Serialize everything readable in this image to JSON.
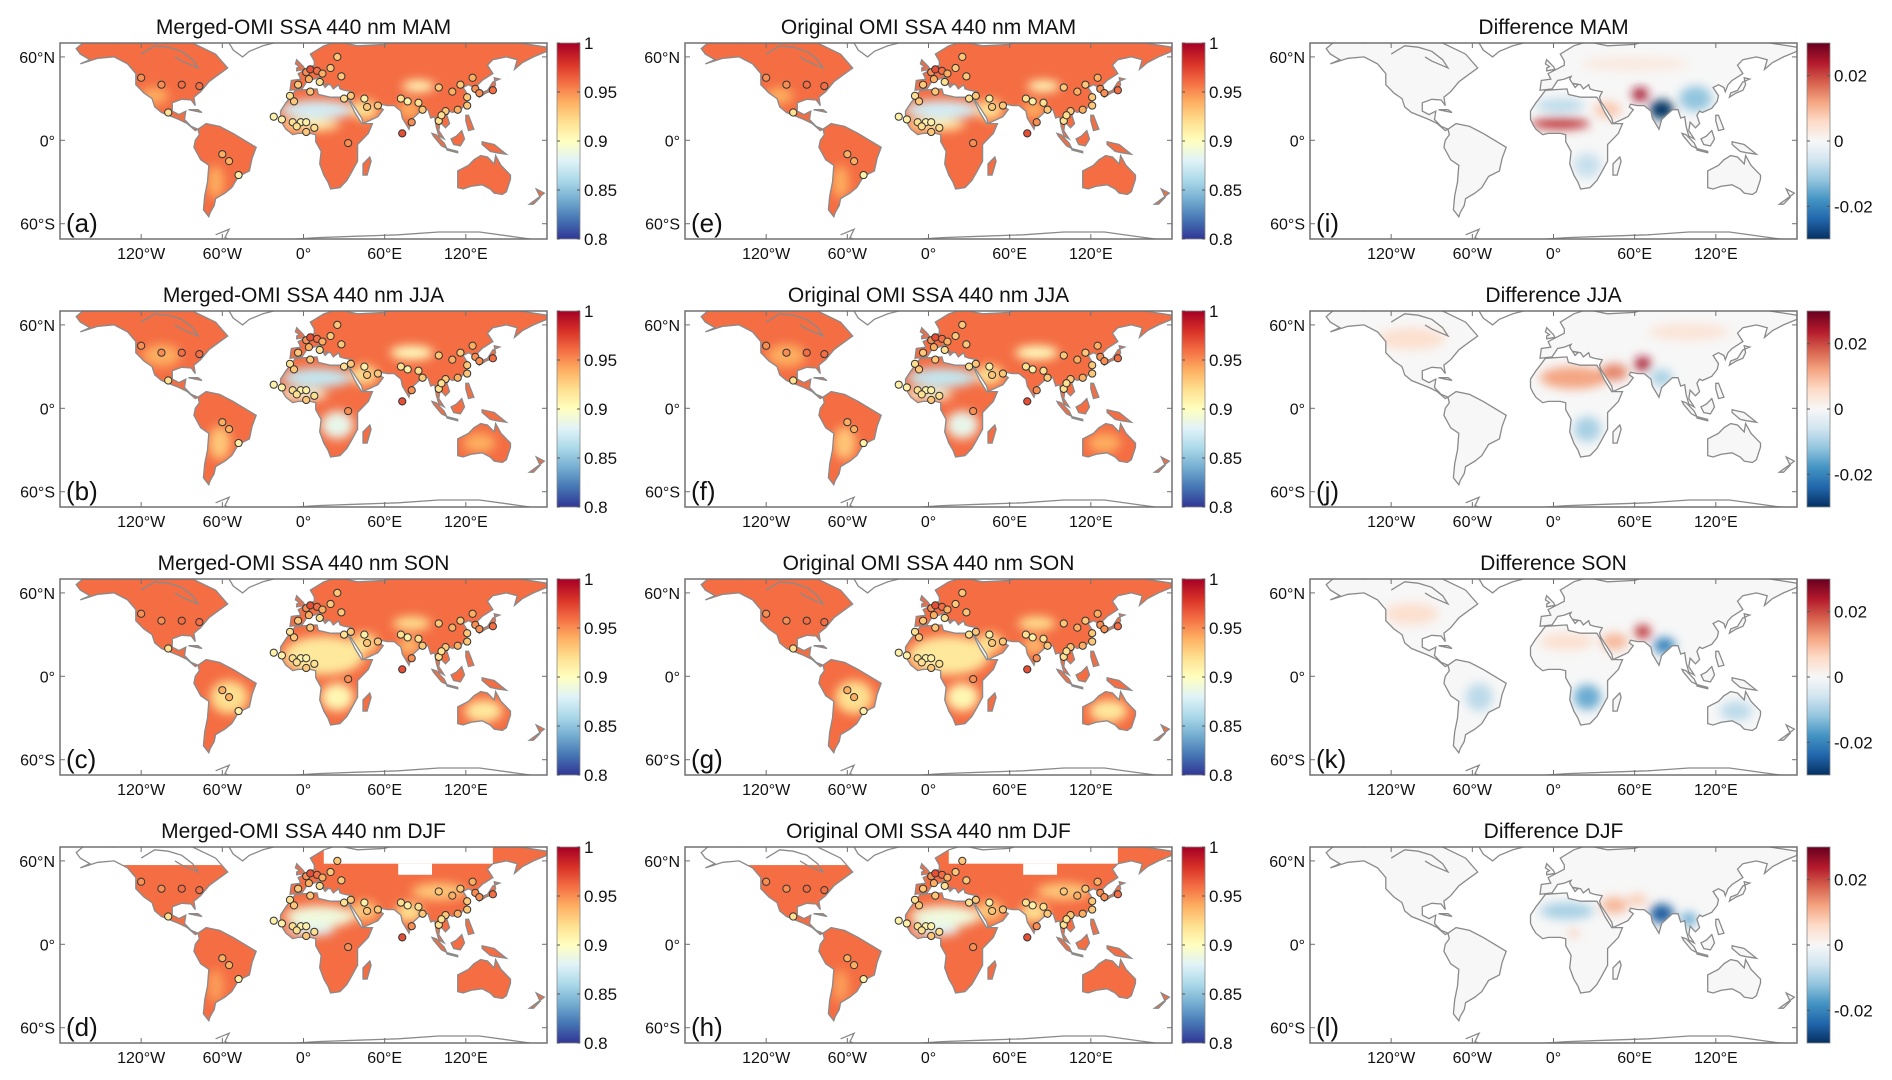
{
  "figure": {
    "panels": [
      {
        "label": "(a)",
        "title": "Merged-OMI SSA 440 nm MAM",
        "kind": "ssa",
        "season": "MAM",
        "row": 0,
        "col": 0,
        "sites": true
      },
      {
        "label": "(b)",
        "title": "Merged-OMI SSA 440 nm JJA",
        "kind": "ssa",
        "season": "JJA",
        "row": 1,
        "col": 0,
        "sites": true
      },
      {
        "label": "(c)",
        "title": "Merged-OMI SSA 440 nm SON",
        "kind": "ssa",
        "season": "SON",
        "row": 2,
        "col": 0,
        "sites": true
      },
      {
        "label": "(d)",
        "title": "Merged-OMI SSA 440 nm DJF",
        "kind": "ssa",
        "season": "DJF",
        "row": 3,
        "col": 0,
        "sites": true
      },
      {
        "label": "(e)",
        "title": "Original OMI SSA 440 nm MAM",
        "kind": "ssa",
        "season": "MAM",
        "row": 0,
        "col": 1,
        "sites": true
      },
      {
        "label": "(f)",
        "title": "Original OMI SSA 440 nm JJA",
        "kind": "ssa",
        "season": "JJA",
        "row": 1,
        "col": 1,
        "sites": true
      },
      {
        "label": "(g)",
        "title": "Original OMI SSA 440 nm SON",
        "kind": "ssa",
        "season": "SON",
        "row": 2,
        "col": 1,
        "sites": true
      },
      {
        "label": "(h)",
        "title": "Original OMI SSA 440 nm DJF",
        "kind": "ssa",
        "season": "DJF",
        "row": 3,
        "col": 1,
        "sites": true
      },
      {
        "label": "(i)",
        "title": "Difference MAM",
        "kind": "diff",
        "season": "MAM",
        "row": 0,
        "col": 2,
        "sites": false
      },
      {
        "label": "(j)",
        "title": "Difference JJA",
        "kind": "diff",
        "season": "JJA",
        "row": 1,
        "col": 2,
        "sites": false
      },
      {
        "label": "(k)",
        "title": "Difference SON",
        "kind": "diff",
        "season": "SON",
        "row": 2,
        "col": 2,
        "sites": false
      },
      {
        "label": "(l)",
        "title": "Difference DJF",
        "kind": "diff",
        "season": "DJF",
        "row": 3,
        "col": 2,
        "sites": false
      }
    ]
  },
  "axes": {
    "lon_range": [
      -180,
      180
    ],
    "lat_range": [
      -71,
      70
    ],
    "lon_ticks": [
      {
        "value": -120,
        "label": "120°W"
      },
      {
        "value": -60,
        "label": "60°W"
      },
      {
        "value": 0,
        "label": "0°"
      },
      {
        "value": 60,
        "label": "60°E"
      },
      {
        "value": 120,
        "label": "120°E"
      }
    ],
    "lat_ticks": [
      {
        "value": 60,
        "label": "60°N"
      },
      {
        "value": 0,
        "label": "0°"
      },
      {
        "value": -60,
        "label": "60°S"
      }
    ]
  },
  "colorbars": {
    "ssa": {
      "min": 0.8,
      "max": 1.0,
      "colormap": "RdYlBu reversed",
      "stops": [
        "#313695",
        "#4575b4",
        "#74add1",
        "#abd9e9",
        "#e0f3f8",
        "#ffffbf",
        "#fee090",
        "#fdae61",
        "#f46d43",
        "#d73027",
        "#a50026"
      ],
      "ticks": [
        {
          "value": 1,
          "label": "1"
        },
        {
          "value": 0.95,
          "label": "0.95"
        },
        {
          "value": 0.9,
          "label": "0.9"
        },
        {
          "value": 0.85,
          "label": "0.85"
        },
        {
          "value": 0.8,
          "label": "0.8"
        }
      ]
    },
    "diff": {
      "min": -0.03,
      "max": 0.03,
      "colormap": "RdBu reversed",
      "stops": [
        "#053061",
        "#2166ac",
        "#4393c3",
        "#92c5de",
        "#d1e5f0",
        "#f7f7f7",
        "#fddbc7",
        "#f4a582",
        "#d6604d",
        "#b2182b",
        "#67001f"
      ],
      "ticks": [
        {
          "value": 0.02,
          "label": "0.02"
        },
        {
          "value": 0,
          "label": "0"
        },
        {
          "value": -0.02,
          "label": "-0.02"
        }
      ]
    }
  },
  "colors": {
    "coastline": "#8a8a8a",
    "frame": "#707070",
    "site_edge": "#333333",
    "no_data": "#ffffff"
  },
  "fields": {
    "ssa": {
      "base": 0.96,
      "MAM": {
        "regions": [
          {
            "lon": 10,
            "lat": 22,
            "dlon": 28,
            "dlat": 7,
            "value": 0.875
          },
          {
            "lon": 5,
            "lat": 11,
            "dlon": 22,
            "dlat": 4,
            "value": 0.91
          },
          {
            "lon": 45,
            "lat": 22,
            "dlon": 10,
            "dlat": 7,
            "value": 0.92
          },
          {
            "lon": 85,
            "lat": 39,
            "dlon": 12,
            "dlat": 4,
            "value": 0.9
          },
          {
            "lon": -110,
            "lat": 32,
            "dlon": 10,
            "dlat": 6,
            "value": 0.94
          },
          {
            "lon": -65,
            "lat": -30,
            "dlon": 6,
            "dlat": 12,
            "value": 0.94
          },
          {
            "lon": 78,
            "lat": 22,
            "dlon": 8,
            "dlat": 6,
            "value": 0.94
          }
        ],
        "no_data": []
      },
      "JJA": {
        "regions": [
          {
            "lon": 10,
            "lat": 22,
            "dlon": 26,
            "dlat": 7,
            "value": 0.87
          },
          {
            "lon": 0,
            "lat": 10,
            "dlon": 18,
            "dlat": 4,
            "value": 0.89
          },
          {
            "lon": 25,
            "lat": -12,
            "dlon": 12,
            "dlat": 10,
            "value": 0.885
          },
          {
            "lon": 45,
            "lat": 24,
            "dlon": 10,
            "dlat": 7,
            "value": 0.92
          },
          {
            "lon": 80,
            "lat": 40,
            "dlon": 16,
            "dlat": 5,
            "value": 0.9
          },
          {
            "lon": -62,
            "lat": -25,
            "dlon": 8,
            "dlat": 12,
            "value": 0.93
          },
          {
            "lon": -105,
            "lat": 38,
            "dlon": 14,
            "dlat": 8,
            "value": 0.94
          },
          {
            "lon": 130,
            "lat": -25,
            "dlon": 12,
            "dlat": 7,
            "value": 0.94
          }
        ],
        "no_data": []
      },
      "SON": {
        "regions": [
          {
            "lon": 15,
            "lat": 15,
            "dlon": 30,
            "dlat": 14,
            "value": 0.915
          },
          {
            "lon": 25,
            "lat": -15,
            "dlon": 12,
            "dlat": 10,
            "value": 0.905
          },
          {
            "lon": -55,
            "lat": -15,
            "dlon": 14,
            "dlat": 12,
            "value": 0.92
          },
          {
            "lon": 133,
            "lat": -25,
            "dlon": 14,
            "dlat": 8,
            "value": 0.915
          },
          {
            "lon": 45,
            "lat": 24,
            "dlon": 10,
            "dlat": 7,
            "value": 0.92
          },
          {
            "lon": 80,
            "lat": 38,
            "dlon": 14,
            "dlat": 5,
            "value": 0.92
          },
          {
            "lon": 78,
            "lat": 22,
            "dlon": 8,
            "dlat": 6,
            "value": 0.935
          }
        ],
        "no_data": []
      },
      "DJF": {
        "regions": [
          {
            "lon": 12,
            "lat": 20,
            "dlon": 26,
            "dlat": 8,
            "value": 0.89
          },
          {
            "lon": 5,
            "lat": 10,
            "dlon": 18,
            "dlat": 4,
            "value": 0.88
          },
          {
            "lon": 45,
            "lat": 24,
            "dlon": 10,
            "dlat": 7,
            "value": 0.93
          },
          {
            "lon": 78,
            "lat": 23,
            "dlon": 10,
            "dlat": 7,
            "value": 0.92
          },
          {
            "lon": 100,
            "lat": 38,
            "dlon": 20,
            "dlat": 6,
            "value": 0.93
          },
          {
            "lon": -65,
            "lat": -30,
            "dlon": 6,
            "dlat": 12,
            "value": 0.945
          }
        ],
        "no_data": [
          {
            "lon": [
              -170,
              -50
            ],
            "lat": [
              57,
              75
            ]
          },
          {
            "lon": [
              15,
              140
            ],
            "lat": [
              58,
              75
            ]
          },
          {
            "lon": [
              70,
              95
            ],
            "lat": [
              50,
              58
            ]
          }
        ]
      }
    },
    "diff": {
      "base": 0.0,
      "MAM": {
        "regions": [
          {
            "lon": 5,
            "lat": 12,
            "dlon": 22,
            "dlat": 4,
            "value": 0.022
          },
          {
            "lon": 5,
            "lat": 25,
            "dlon": 18,
            "dlat": 5,
            "value": -0.008
          },
          {
            "lon": 40,
            "lat": 22,
            "dlon": 10,
            "dlat": 6,
            "value": 0.008
          },
          {
            "lon": 64,
            "lat": 33,
            "dlon": 6,
            "dlat": 5,
            "value": 0.025
          },
          {
            "lon": 80,
            "lat": 22,
            "dlon": 9,
            "dlat": 7,
            "value": -0.03
          },
          {
            "lon": 105,
            "lat": 30,
            "dlon": 12,
            "dlat": 9,
            "value": -0.012
          },
          {
            "lon": 25,
            "lat": -18,
            "dlon": 10,
            "dlat": 9,
            "value": -0.007
          },
          {
            "lon": 60,
            "lat": 55,
            "dlon": 40,
            "dlat": 5,
            "value": 0.003
          }
        ],
        "no_data": []
      },
      "JJA": {
        "regions": [
          {
            "lon": 15,
            "lat": 22,
            "dlon": 25,
            "dlat": 8,
            "value": 0.012
          },
          {
            "lon": 45,
            "lat": 26,
            "dlon": 10,
            "dlat": 6,
            "value": 0.015
          },
          {
            "lon": 66,
            "lat": 32,
            "dlon": 6,
            "dlat": 5,
            "value": 0.025
          },
          {
            "lon": 80,
            "lat": 22,
            "dlon": 8,
            "dlat": 6,
            "value": -0.01
          },
          {
            "lon": 25,
            "lat": -15,
            "dlon": 10,
            "dlat": 9,
            "value": -0.01
          },
          {
            "lon": -105,
            "lat": 50,
            "dlon": 25,
            "dlat": 8,
            "value": 0.005
          },
          {
            "lon": 100,
            "lat": 55,
            "dlon": 30,
            "dlat": 6,
            "value": 0.004
          }
        ],
        "no_data": []
      },
      "SON": {
        "regions": [
          {
            "lon": 45,
            "lat": 25,
            "dlon": 10,
            "dlat": 6,
            "value": 0.01
          },
          {
            "lon": 66,
            "lat": 32,
            "dlon": 6,
            "dlat": 5,
            "value": 0.022
          },
          {
            "lon": 82,
            "lat": 22,
            "dlon": 8,
            "dlat": 6,
            "value": -0.02
          },
          {
            "lon": 25,
            "lat": -15,
            "dlon": 10,
            "dlat": 9,
            "value": -0.015
          },
          {
            "lon": -55,
            "lat": -15,
            "dlon": 10,
            "dlat": 10,
            "value": -0.008
          },
          {
            "lon": 135,
            "lat": -25,
            "dlon": 12,
            "dlat": 7,
            "value": -0.008
          },
          {
            "lon": -105,
            "lat": 45,
            "dlon": 20,
            "dlat": 8,
            "value": 0.005
          },
          {
            "lon": 10,
            "lat": 25,
            "dlon": 20,
            "dlat": 6,
            "value": 0.005
          }
        ],
        "no_data": []
      },
      "DJF": {
        "regions": [
          {
            "lon": 10,
            "lat": 24,
            "dlon": 20,
            "dlat": 6,
            "value": -0.01
          },
          {
            "lon": 45,
            "lat": 28,
            "dlon": 10,
            "dlat": 6,
            "value": 0.01
          },
          {
            "lon": 62,
            "lat": 32,
            "dlon": 7,
            "dlat": 4,
            "value": 0.008
          },
          {
            "lon": 80,
            "lat": 22,
            "dlon": 9,
            "dlat": 7,
            "value": -0.025
          },
          {
            "lon": 100,
            "lat": 18,
            "dlon": 6,
            "dlat": 5,
            "value": -0.015
          },
          {
            "lon": 15,
            "lat": 8,
            "dlon": 4,
            "dlat": 2,
            "value": 0.01
          }
        ],
        "no_data": []
      }
    }
  },
  "sites": [
    {
      "lon": 2,
      "lat": 49,
      "value": 0.95
    },
    {
      "lon": 5,
      "lat": 51,
      "value": 0.97
    },
    {
      "lon": 10,
      "lat": 50,
      "value": 0.96
    },
    {
      "lon": 14,
      "lat": 48,
      "value": 0.94
    },
    {
      "lon": 20,
      "lat": 52,
      "value": 0.93
    },
    {
      "lon": 25,
      "lat": 60,
      "value": 0.93
    },
    {
      "lon": 28,
      "lat": 46,
      "value": 0.93
    },
    {
      "lon": 4,
      "lat": 44,
      "value": 0.94
    },
    {
      "lon": -4,
      "lat": 40,
      "value": 0.93
    },
    {
      "lon": 12,
      "lat": 42,
      "value": 0.92
    },
    {
      "lon": -16,
      "lat": 15,
      "value": 0.91
    },
    {
      "lon": -8,
      "lat": 13,
      "value": 0.92
    },
    {
      "lon": -2,
      "lat": 13,
      "value": 0.91
    },
    {
      "lon": 2,
      "lat": 13,
      "value": 0.91
    },
    {
      "lon": -5,
      "lat": 10,
      "value": 0.92
    },
    {
      "lon": 8,
      "lat": 9,
      "value": 0.92
    },
    {
      "lon": 2,
      "lat": 6,
      "value": 0.93
    },
    {
      "lon": -10,
      "lat": 32,
      "value": 0.92
    },
    {
      "lon": -7,
      "lat": 28,
      "value": 0.93
    },
    {
      "lon": 5,
      "lat": 35,
      "value": 0.93
    },
    {
      "lon": 30,
      "lat": 30,
      "value": 0.92
    },
    {
      "lon": 33,
      "lat": -2,
      "value": 0.95
    },
    {
      "lon": -22,
      "lat": 17,
      "value": 0.91
    },
    {
      "lon": 35,
      "lat": 32,
      "value": 0.93
    },
    {
      "lon": 47,
      "lat": 24,
      "value": 0.93
    },
    {
      "lon": 55,
      "lat": 25,
      "value": 0.93
    },
    {
      "lon": 45,
      "lat": 30,
      "value": 0.91
    },
    {
      "lon": 72,
      "lat": 30,
      "value": 0.92
    },
    {
      "lon": 77,
      "lat": 28,
      "value": 0.91
    },
    {
      "lon": 85,
      "lat": 27,
      "value": 0.92
    },
    {
      "lon": 88,
      "lat": 22,
      "value": 0.93
    },
    {
      "lon": 80,
      "lat": 13,
      "value": 0.95
    },
    {
      "lon": 73,
      "lat": 5,
      "value": 0.97
    },
    {
      "lon": 100,
      "lat": 14,
      "value": 0.92
    },
    {
      "lon": 105,
      "lat": 21,
      "value": 0.93
    },
    {
      "lon": 102,
      "lat": 18,
      "value": 0.92
    },
    {
      "lon": 110,
      "lat": 35,
      "value": 0.94
    },
    {
      "lon": 116,
      "lat": 40,
      "value": 0.93
    },
    {
      "lon": 121,
      "lat": 31,
      "value": 0.93
    },
    {
      "lon": 127,
      "lat": 37,
      "value": 0.95
    },
    {
      "lon": 140,
      "lat": 36,
      "value": 0.96
    },
    {
      "lon": 130,
      "lat": 34,
      "value": 0.95
    },
    {
      "lon": 114,
      "lat": 22,
      "value": 0.94
    },
    {
      "lon": 121,
      "lat": 25,
      "value": 0.93
    },
    {
      "lon": 125,
      "lat": 45,
      "value": 0.94
    },
    {
      "lon": 100,
      "lat": 38,
      "value": 0.93
    },
    {
      "lon": -100,
      "lat": 20,
      "value": 0.92
    },
    {
      "lon": -77,
      "lat": 39,
      "value": 0.96
    },
    {
      "lon": -90,
      "lat": 40,
      "value": 0.96
    },
    {
      "lon": -105,
      "lat": 40,
      "value": 0.95
    },
    {
      "lon": -120,
      "lat": 45,
      "value": 0.95
    },
    {
      "lon": -60,
      "lat": -10,
      "value": 0.94
    },
    {
      "lon": -55,
      "lat": -15,
      "value": 0.94
    },
    {
      "lon": -48,
      "lat": -25,
      "value": 0.91
    }
  ]
}
